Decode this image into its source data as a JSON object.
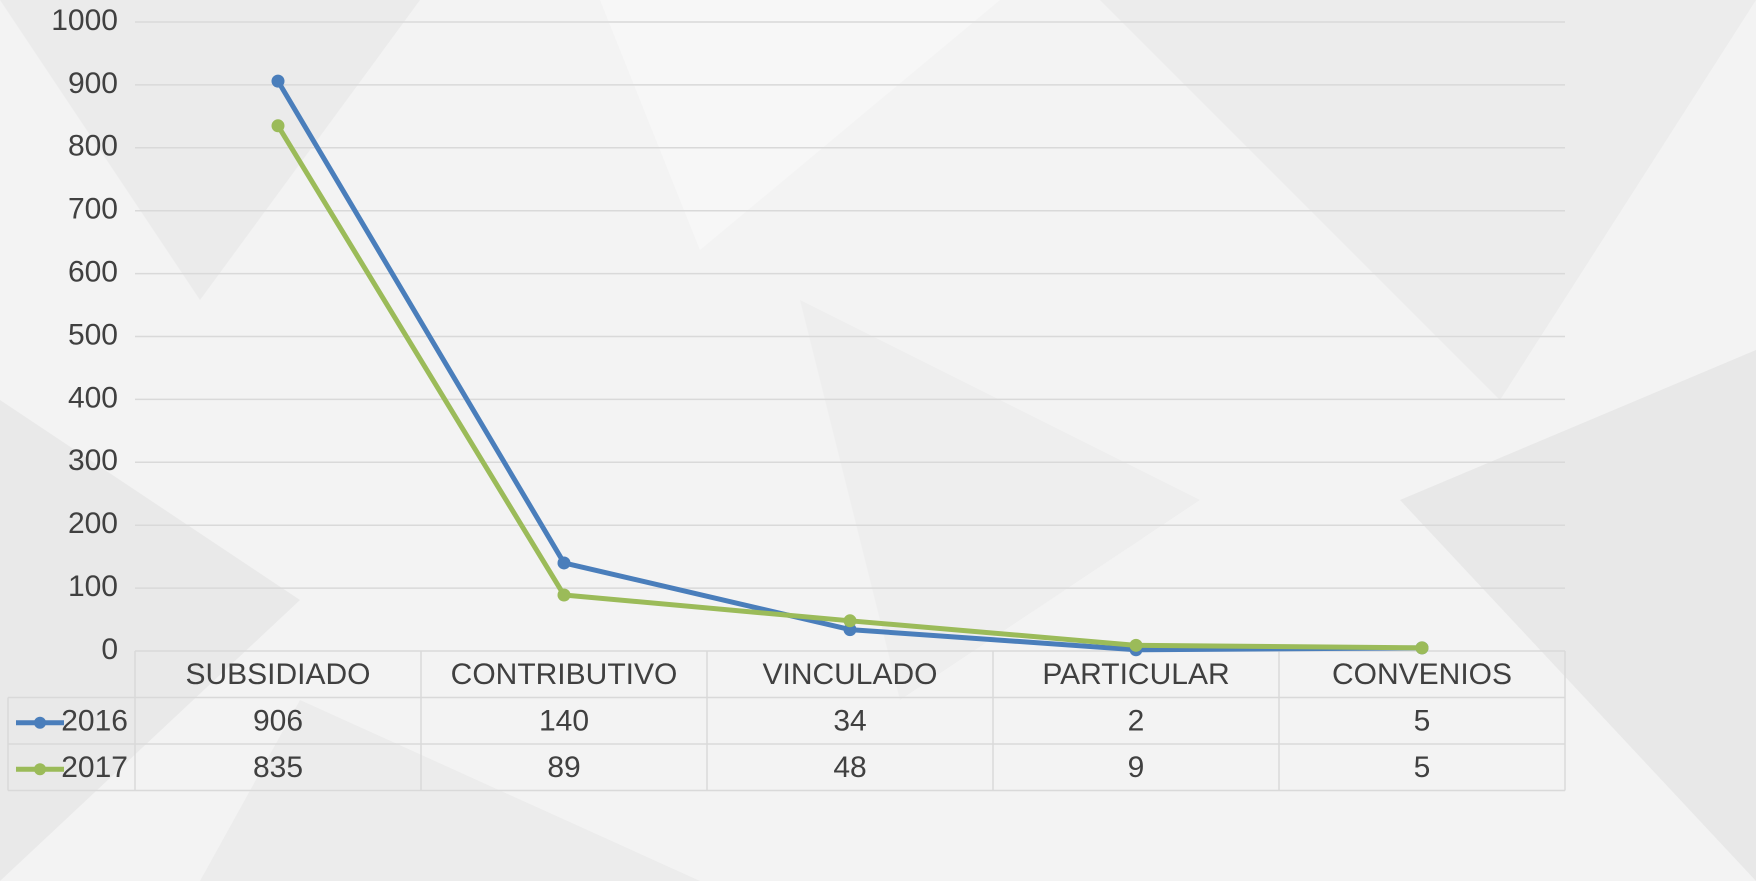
{
  "chart_data": {
    "type": "line",
    "categories": [
      "SUBSIDIADO",
      "CONTRIBUTIVO",
      "VINCULADO",
      "PARTICULAR",
      "CONVENIOS"
    ],
    "series": [
      {
        "name": "2016",
        "color": "#4a7ebb",
        "values": [
          906,
          140,
          34,
          2,
          5
        ]
      },
      {
        "name": "2017",
        "color": "#9bbb59",
        "values": [
          835,
          89,
          48,
          9,
          5
        ]
      }
    ],
    "ylim": [
      0,
      1000
    ],
    "yticks": [
      0,
      100,
      200,
      300,
      400,
      500,
      600,
      700,
      800,
      900,
      1000
    ],
    "grid": true
  }
}
